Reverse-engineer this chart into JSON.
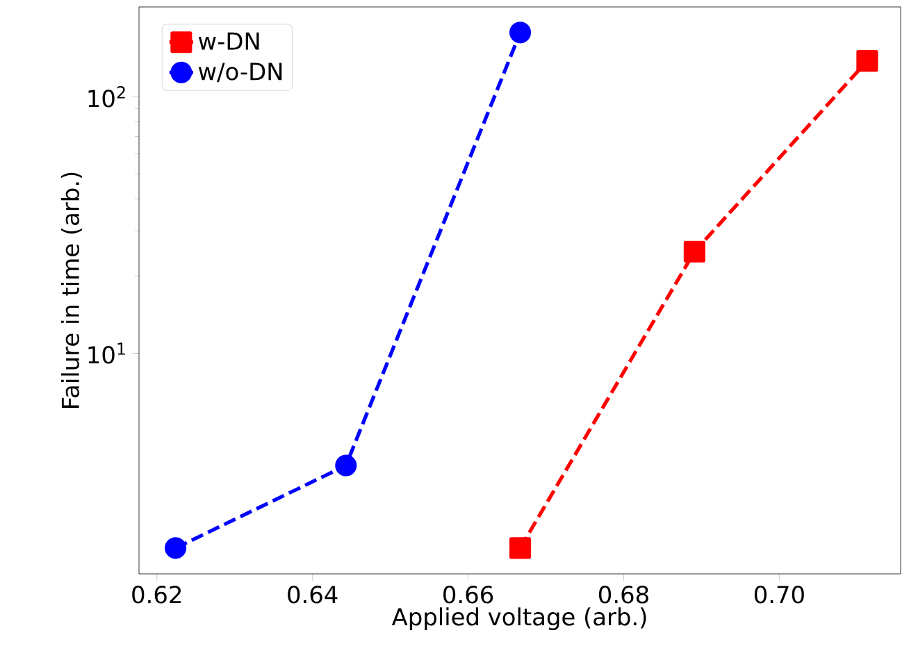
{
  "chart_data": {
    "type": "line",
    "xlabel": "Applied voltage (arb.)",
    "ylabel": "Failure in time (arb.)",
    "log": "y",
    "xlim": [
      0.6177,
      0.7156
    ],
    "ylim": [
      1.38,
      224
    ],
    "xticks": [
      0.62,
      0.64,
      0.66,
      0.68,
      {
        "value": 0.7,
        "label": "0.70"
      }
    ],
    "yticks": [
      {
        "value": 10,
        "label": "10$^{1}$"
      },
      {
        "value": 100,
        "label": "10$^{2}$"
      }
    ],
    "legend": "top left",
    "line_style": "dashed",
    "grid": false,
    "series": [
      {
        "name": "w-DN",
        "color": "#ff0000",
        "marker": "square",
        "x": [
          0.6667,
          0.6891,
          0.7113
        ],
        "values": [
          1.74,
          24.9,
          138
        ]
      },
      {
        "name": "w/o-DN",
        "color": "#0000ff",
        "marker": "circle",
        "x": [
          0.6224,
          0.6443,
          0.6667
        ],
        "values": [
          1.74,
          3.65,
          178
        ]
      }
    ]
  }
}
